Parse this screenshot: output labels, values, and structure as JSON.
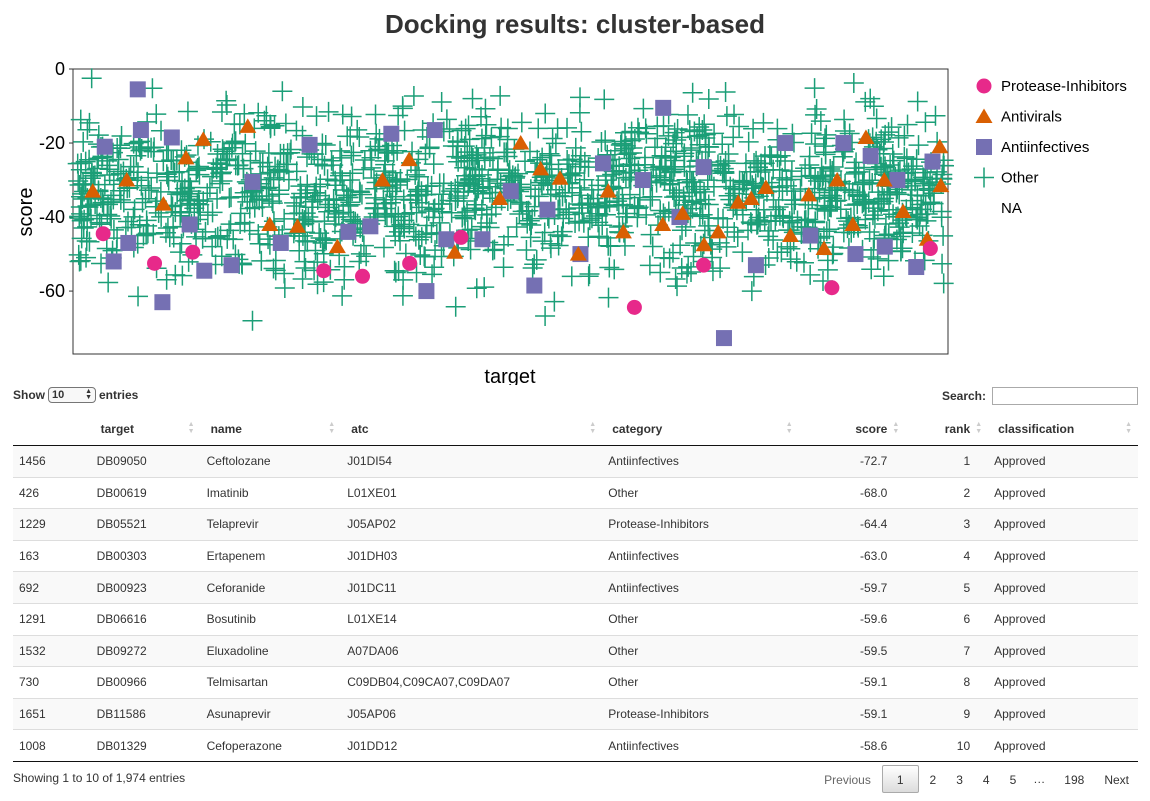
{
  "chart_data": {
    "type": "scatter",
    "title": "Docking results: cluster-based",
    "xlabel": "target",
    "ylabel": "score",
    "ylim": [
      -77,
      0
    ],
    "yticks": [
      0,
      -20,
      -40,
      -60
    ],
    "grid": false,
    "legend_position": "right",
    "series": [
      {
        "name": "Protease-Inhibitors",
        "marker": "circle",
        "color": "#e7298a",
        "points": [
          [
            50,
            -44.5
          ],
          [
            148,
            -52.5
          ],
          [
            221,
            -49.5
          ],
          [
            471,
            -54.5
          ],
          [
            545,
            -56
          ],
          [
            635,
            -52.5
          ],
          [
            733,
            -45.5
          ],
          [
            1064,
            -64.4
          ],
          [
            1196,
            -53
          ],
          [
            1441,
            -59.1
          ],
          [
            1629,
            -48.5
          ]
        ]
      },
      {
        "name": "Antivirals",
        "marker": "triangle",
        "color": "#d95f02",
        "points": [
          [
            30,
            -33
          ],
          [
            95,
            -30
          ],
          [
            165,
            -36.5
          ],
          [
            208,
            -24
          ],
          [
            241,
            -19
          ],
          [
            326,
            -15.5
          ],
          [
            368,
            -42
          ],
          [
            421,
            -42.5
          ],
          [
            497,
            -48
          ],
          [
            583,
            -30
          ],
          [
            634,
            -24.5
          ],
          [
            721,
            -49.5
          ],
          [
            807,
            -35
          ],
          [
            847,
            -20
          ],
          [
            885,
            -27
          ],
          [
            922,
            -29.5
          ],
          [
            957,
            -50
          ],
          [
            1014,
            -33
          ],
          [
            1043,
            -44
          ],
          [
            1118,
            -42
          ],
          [
            1156,
            -39
          ],
          [
            1197,
            -47.5
          ],
          [
            1224,
            -44
          ],
          [
            1262,
            -36
          ],
          [
            1287,
            -35
          ],
          [
            1315,
            -32
          ],
          [
            1362,
            -45
          ],
          [
            1397,
            -34
          ],
          [
            1426,
            -48.5
          ],
          [
            1451,
            -30
          ],
          [
            1481,
            -42
          ],
          [
            1506,
            -18.5
          ],
          [
            1541,
            -30
          ],
          [
            1577,
            -38.5
          ],
          [
            1623,
            -46
          ],
          [
            1647,
            -21
          ],
          [
            1649,
            -31.5
          ]
        ]
      },
      {
        "name": "Antiinfectives",
        "marker": "square",
        "color": "#7570b3",
        "points": [
          [
            53,
            -21
          ],
          [
            70,
            -52
          ],
          [
            98,
            -47
          ],
          [
            116,
            -5.5
          ],
          [
            122,
            -16.5
          ],
          [
            163,
            -63
          ],
          [
            181,
            -18.5
          ],
          [
            215,
            -42
          ],
          [
            243,
            -54.5
          ],
          [
            295,
            -53
          ],
          [
            335,
            -30.5
          ],
          [
            389,
            -47
          ],
          [
            444,
            -20.5
          ],
          [
            518,
            -44
          ],
          [
            560,
            -42.5
          ],
          [
            600,
            -17.5
          ],
          [
            667,
            -60
          ],
          [
            683,
            -16.5
          ],
          [
            705,
            -46
          ],
          [
            774,
            -46
          ],
          [
            828,
            -33
          ],
          [
            873,
            -58.5
          ],
          [
            898,
            -38
          ],
          [
            961,
            -50
          ],
          [
            1004,
            -25.5
          ],
          [
            1080,
            -30
          ],
          [
            1119,
            -10.5
          ],
          [
            1150,
            -40
          ],
          [
            1196,
            -26.5
          ],
          [
            1235,
            -72.7
          ],
          [
            1296,
            -53
          ],
          [
            1352,
            -20
          ],
          [
            1400,
            -45
          ],
          [
            1463,
            -20
          ],
          [
            1486,
            -50
          ],
          [
            1515,
            -23.5
          ],
          [
            1542,
            -48
          ],
          [
            1566,
            -30
          ],
          [
            1602,
            -53.5
          ],
          [
            1633,
            -25
          ]
        ]
      },
      {
        "name": "Other",
        "marker": "plus",
        "color": "#1b9e77",
        "points": "generated"
      },
      {
        "name": "NA",
        "marker": "none",
        "color": "#ffffff",
        "points": []
      }
    ]
  },
  "table": {
    "controls": {
      "show_label": "Show",
      "length_value": "10",
      "entries_label": "entries",
      "search_label": "Search:",
      "search_value": ""
    },
    "columns": [
      {
        "key": "idx",
        "label": ""
      },
      {
        "key": "target",
        "label": "target"
      },
      {
        "key": "name",
        "label": "name"
      },
      {
        "key": "atc",
        "label": "atc"
      },
      {
        "key": "category",
        "label": "category"
      },
      {
        "key": "score",
        "label": "score"
      },
      {
        "key": "rank",
        "label": "rank"
      },
      {
        "key": "classification",
        "label": "classification"
      }
    ],
    "rows": [
      {
        "idx": "1456",
        "target": "DB09050",
        "name": "Ceftolozane",
        "atc": "J01DI54",
        "category": "Antiinfectives",
        "score": "-72.7",
        "rank": "1",
        "classification": "Approved"
      },
      {
        "idx": "426",
        "target": "DB00619",
        "name": "Imatinib",
        "atc": "L01XE01",
        "category": "Other",
        "score": "-68.0",
        "rank": "2",
        "classification": "Approved"
      },
      {
        "idx": "1229",
        "target": "DB05521",
        "name": "Telaprevir",
        "atc": "J05AP02",
        "category": "Protease-Inhibitors",
        "score": "-64.4",
        "rank": "3",
        "classification": "Approved"
      },
      {
        "idx": "163",
        "target": "DB00303",
        "name": "Ertapenem",
        "atc": "J01DH03",
        "category": "Antiinfectives",
        "score": "-63.0",
        "rank": "4",
        "classification": "Approved"
      },
      {
        "idx": "692",
        "target": "DB00923",
        "name": "Ceforanide",
        "atc": "J01DC11",
        "category": "Antiinfectives",
        "score": "-59.7",
        "rank": "5",
        "classification": "Approved"
      },
      {
        "idx": "1291",
        "target": "DB06616",
        "name": "Bosutinib",
        "atc": "L01XE14",
        "category": "Other",
        "score": "-59.6",
        "rank": "6",
        "classification": "Approved"
      },
      {
        "idx": "1532",
        "target": "DB09272",
        "name": "Eluxadoline",
        "atc": "A07DA06",
        "category": "Other",
        "score": "-59.5",
        "rank": "7",
        "classification": "Approved"
      },
      {
        "idx": "730",
        "target": "DB00966",
        "name": "Telmisartan",
        "atc": "C09DB04,C09CA07,C09DA07",
        "category": "Other",
        "score": "-59.1",
        "rank": "8",
        "classification": "Approved"
      },
      {
        "idx": "1651",
        "target": "DB11586",
        "name": "Asunaprevir",
        "atc": "J05AP06",
        "category": "Protease-Inhibitors",
        "score": "-59.1",
        "rank": "9",
        "classification": "Approved"
      },
      {
        "idx": "1008",
        "target": "DB01329",
        "name": "Cefoperazone",
        "atc": "J01DD12",
        "category": "Antiinfectives",
        "score": "-58.6",
        "rank": "10",
        "classification": "Approved"
      }
    ],
    "info": "Showing 1 to 10 of 1,974 entries",
    "pagination": {
      "previous": "Previous",
      "pages": [
        "1",
        "2",
        "3",
        "4",
        "5"
      ],
      "ellipsis": "…",
      "last": "198",
      "next": "Next"
    }
  }
}
